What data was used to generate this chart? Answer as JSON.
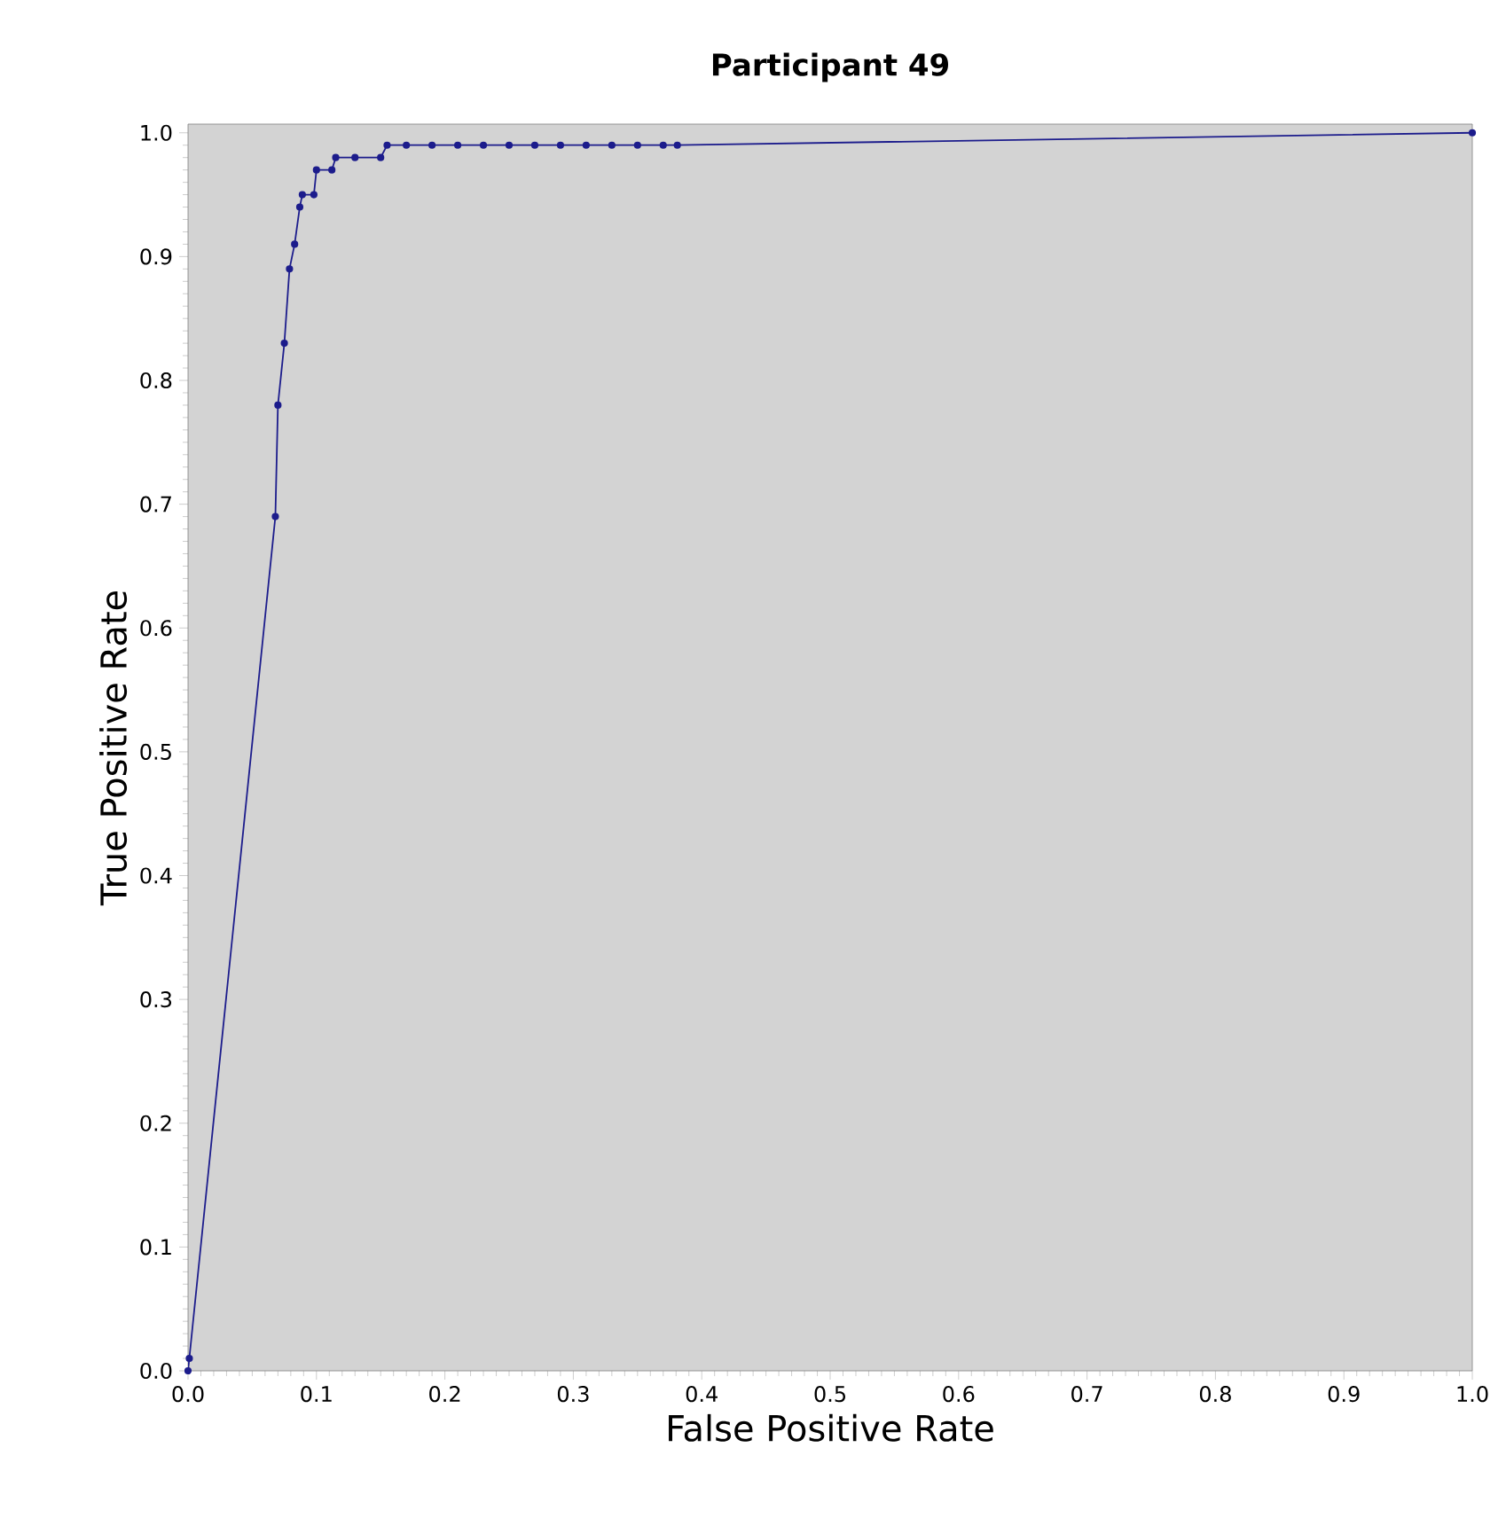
{
  "chart_data": {
    "type": "line",
    "title": "Participant 49",
    "xlabel": "False Positive Rate",
    "ylabel": "True Positive Rate",
    "x": [
      0,
      0.001,
      0.068,
      0.07,
      0.075,
      0.079,
      0.083,
      0.087,
      0.089,
      0.098,
      0.1,
      0.112,
      0.115,
      0.13,
      0.15,
      0.155,
      0.17,
      0.19,
      0.21,
      0.23,
      0.25,
      0.27,
      0.29,
      0.31,
      0.33,
      0.35,
      0.37,
      0.381,
      1
    ],
    "series": [
      {
        "color": "#1c1c8c",
        "values": [
          0,
          0.01,
          0.69,
          0.78,
          0.83,
          0.89,
          0.91,
          0.94,
          0.95,
          0.95,
          0.97,
          0.97,
          0.98,
          0.98,
          0.98,
          0.99,
          0.99,
          0.99,
          0.99,
          0.99,
          0.99,
          0.99,
          0.99,
          0.99,
          0.99,
          0.99,
          0.99,
          0.99,
          1
        ]
      }
    ],
    "xlim": [
      0,
      1
    ],
    "ylim": [
      0,
      1.007
    ],
    "xticks": [
      {
        "value": 0,
        "label": "0.0"
      },
      0.1,
      0.2,
      0.3,
      0.4,
      0.5,
      0.6,
      0.7,
      0.8,
      0.9,
      {
        "value": 1,
        "label": "1.0"
      }
    ],
    "yticks": [
      {
        "value": 0,
        "label": "0.0"
      },
      0.1,
      0.2,
      0.3,
      0.4,
      0.5,
      0.6,
      0.7,
      0.8,
      0.9,
      {
        "value": 1,
        "label": "1.0"
      }
    ],
    "marker": "circle"
  }
}
